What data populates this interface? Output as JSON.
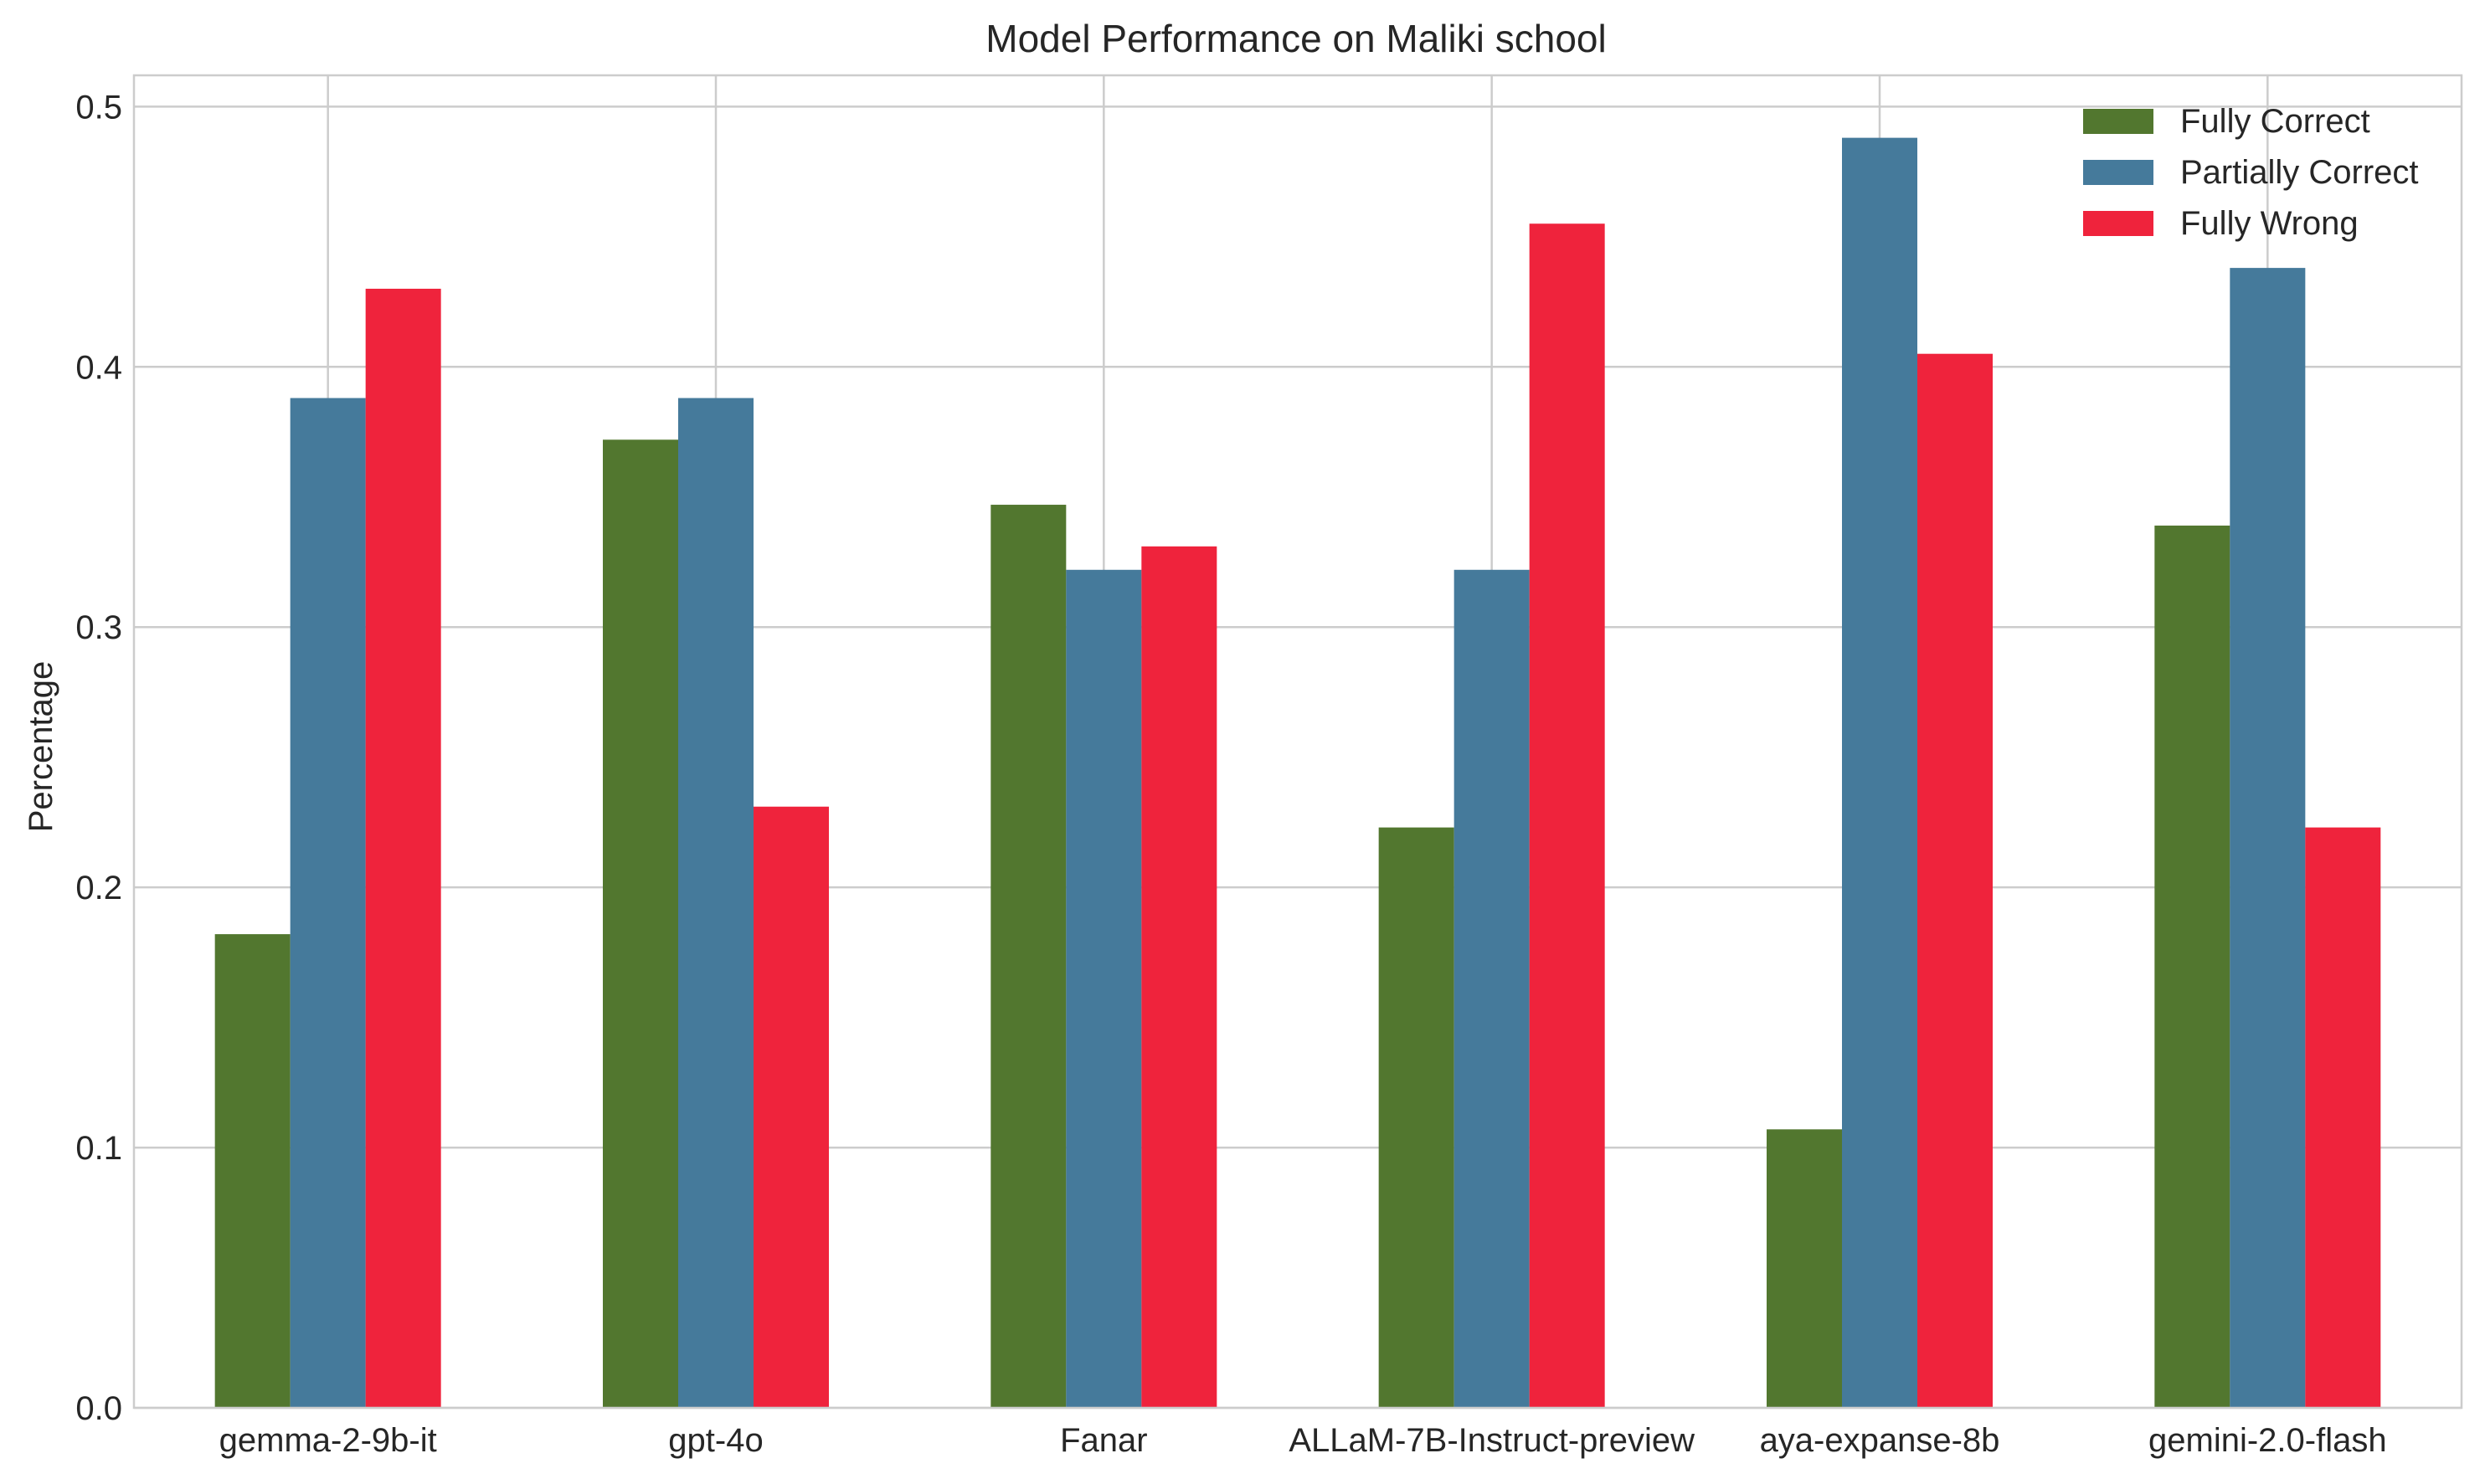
{
  "chart_data": {
    "type": "bar",
    "title": "Model Performance on Maliki school",
    "xlabel": "",
    "ylabel": "Percentage",
    "ylim": [
      0,
      0.512
    ],
    "yticks": [
      0.0,
      0.1,
      0.2,
      0.3,
      0.4,
      0.5
    ],
    "ytick_labels": [
      "0.0",
      "0.1",
      "0.2",
      "0.3",
      "0.4",
      "0.5"
    ],
    "grid": true,
    "legend_position": "top-right",
    "categories": [
      "gemma-2-9b-it",
      "gpt-4o",
      "Fanar",
      "ALLaM-7B-Instruct-preview",
      "aya-expanse-8b",
      "gemini-2.0-flash"
    ],
    "series": [
      {
        "name": "Fully Correct",
        "color": "#52772f",
        "values": [
          0.182,
          0.372,
          0.347,
          0.223,
          0.107,
          0.339
        ]
      },
      {
        "name": "Partially Correct",
        "color": "#457a9b",
        "values": [
          0.388,
          0.388,
          0.322,
          0.322,
          0.488,
          0.438
        ]
      },
      {
        "name": "Fully Wrong",
        "color": "#ef233c",
        "values": [
          0.43,
          0.231,
          0.331,
          0.455,
          0.405,
          0.223
        ]
      }
    ]
  }
}
